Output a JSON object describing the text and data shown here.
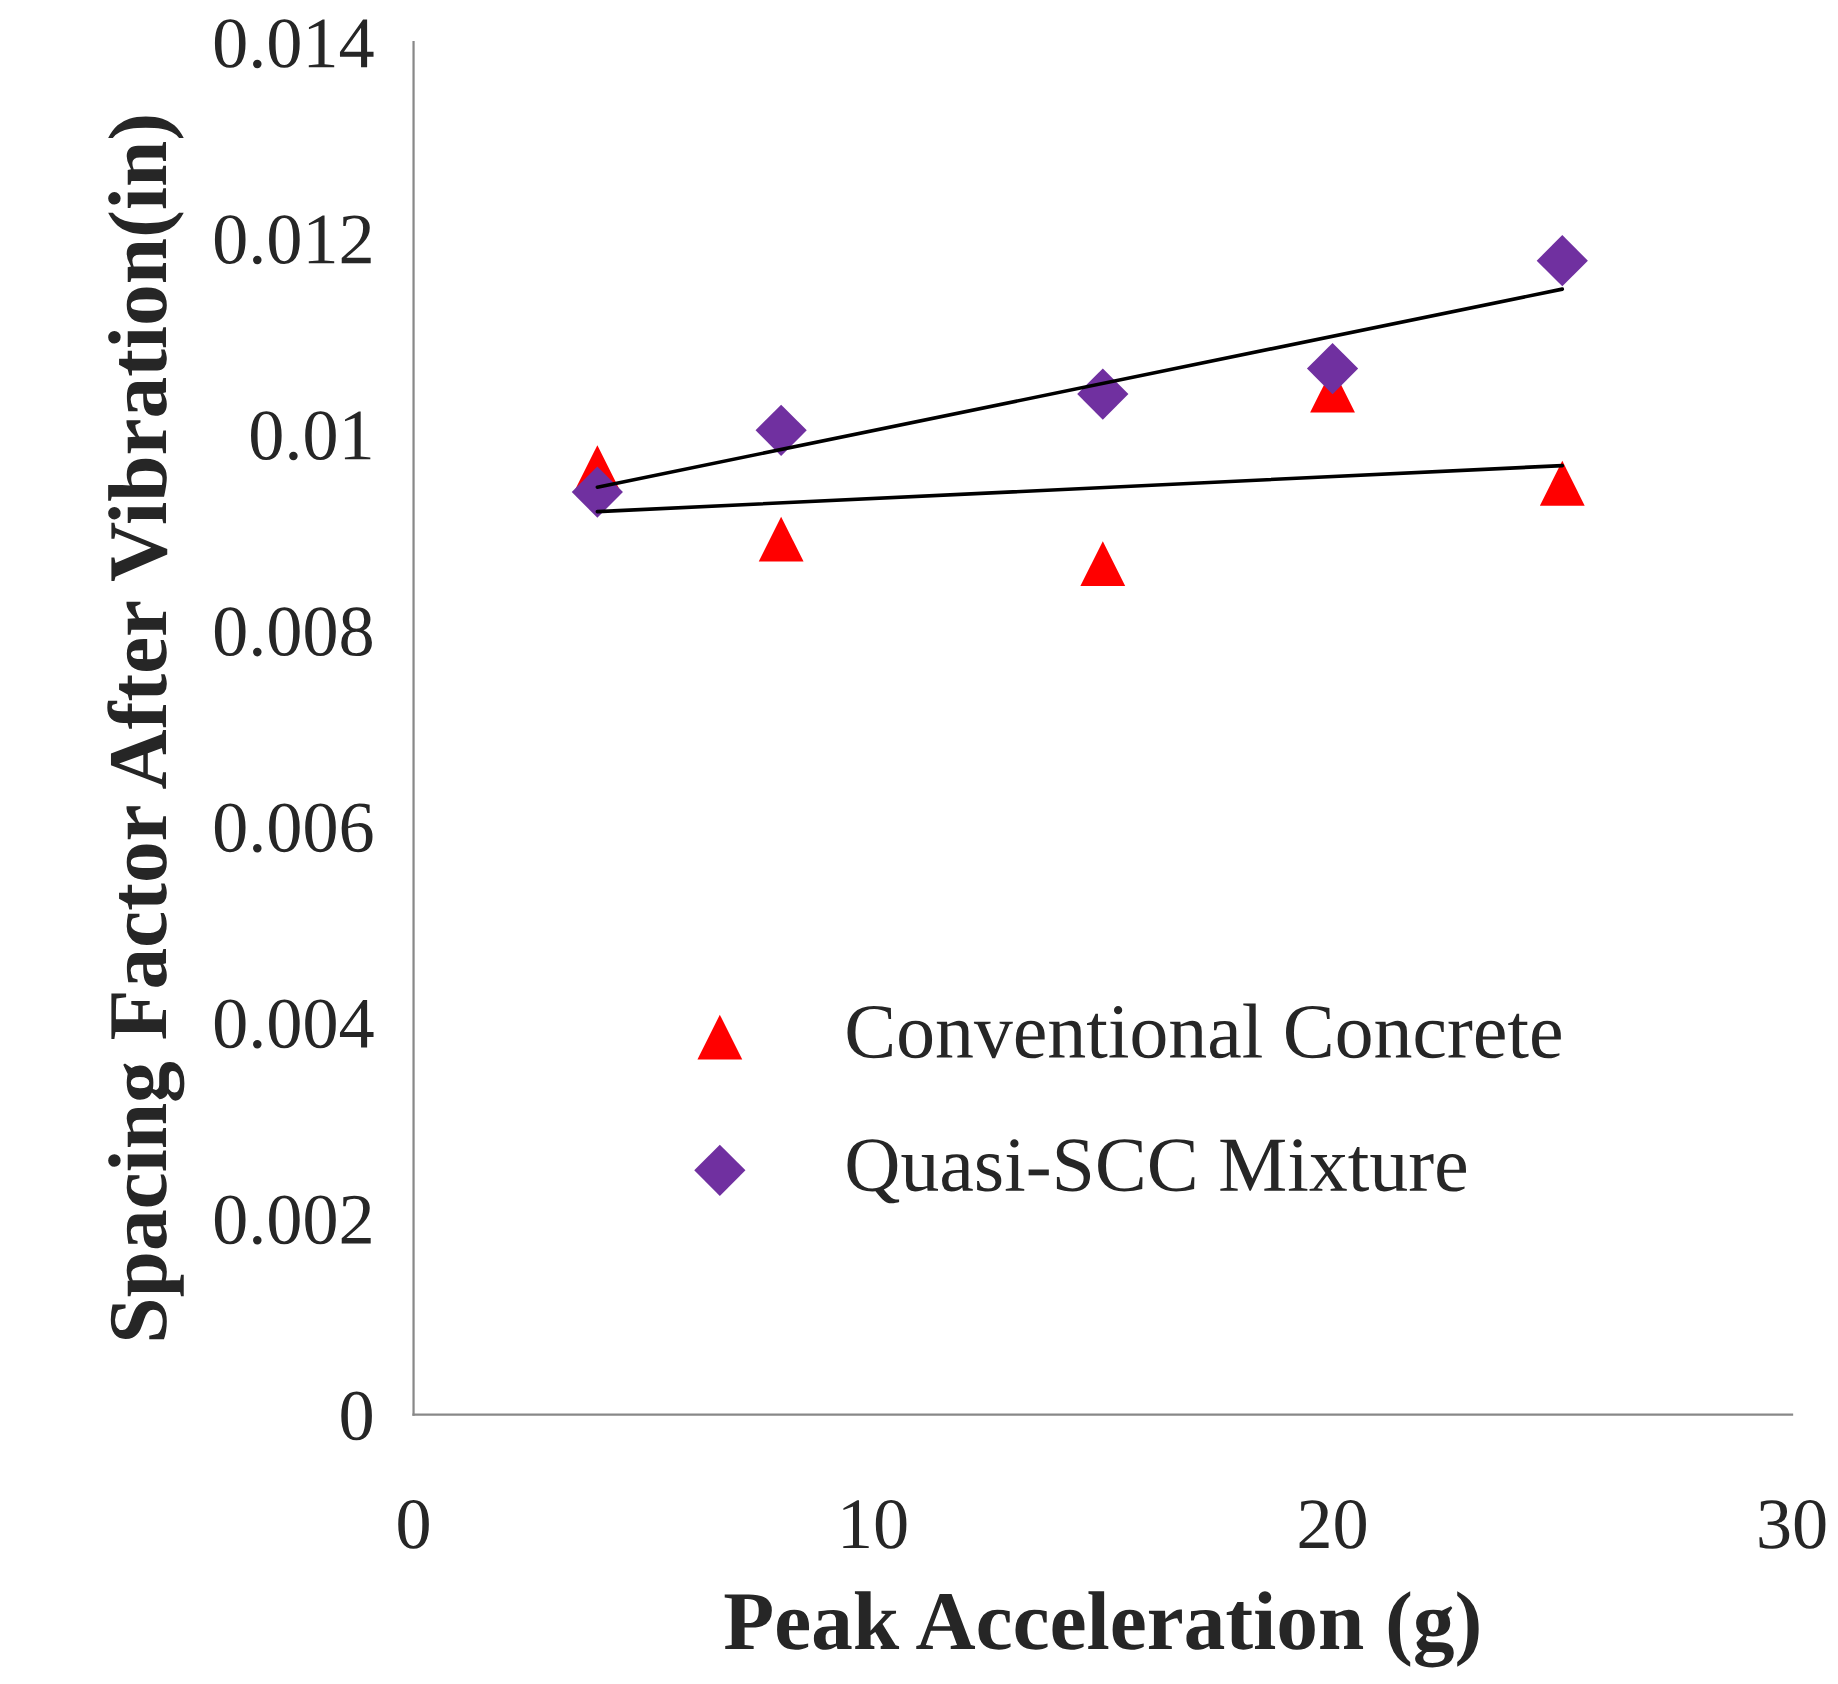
{
  "chart_data": {
    "type": "scatter",
    "xlabel": "Peak Acceleration (g)",
    "ylabel": "Spacing Factor After Vibration(in)",
    "xlim": [
      0,
      30
    ],
    "xticks": [
      0,
      10,
      20,
      30
    ],
    "ylim": [
      0,
      0.014
    ],
    "yticks": [
      0,
      0.002,
      0.004,
      0.006,
      0.008,
      0.01,
      0.012,
      0.014
    ],
    "grid": false,
    "legend": "bottom",
    "series": [
      {
        "name": "Conventional Concrete",
        "marker": "triangle",
        "color": "#ff0000",
        "x": [
          4,
          8,
          15,
          20,
          25
        ],
        "values": [
          0.00966,
          0.00893,
          0.00868,
          0.01045,
          0.0095
        ]
      },
      {
        "name": "Quasi-SCC Mixture",
        "marker": "diamond",
        "color": "#7030a0",
        "x": [
          4,
          8,
          15,
          20,
          25
        ],
        "values": [
          0.00941,
          0.01004,
          0.01041,
          0.01067,
          0.01177
        ]
      },
      {
        "type": "line",
        "marker": "none",
        "line_style": "solid",
        "color": "#000000",
        "x": [
          4,
          25
        ],
        "values": [
          0.00921,
          0.00968
        ]
      },
      {
        "type": "line",
        "marker": "none",
        "line_style": "solid",
        "color": "#000000",
        "x": [
          4,
          25
        ],
        "values": [
          0.00946,
          0.01148
        ]
      }
    ]
  }
}
